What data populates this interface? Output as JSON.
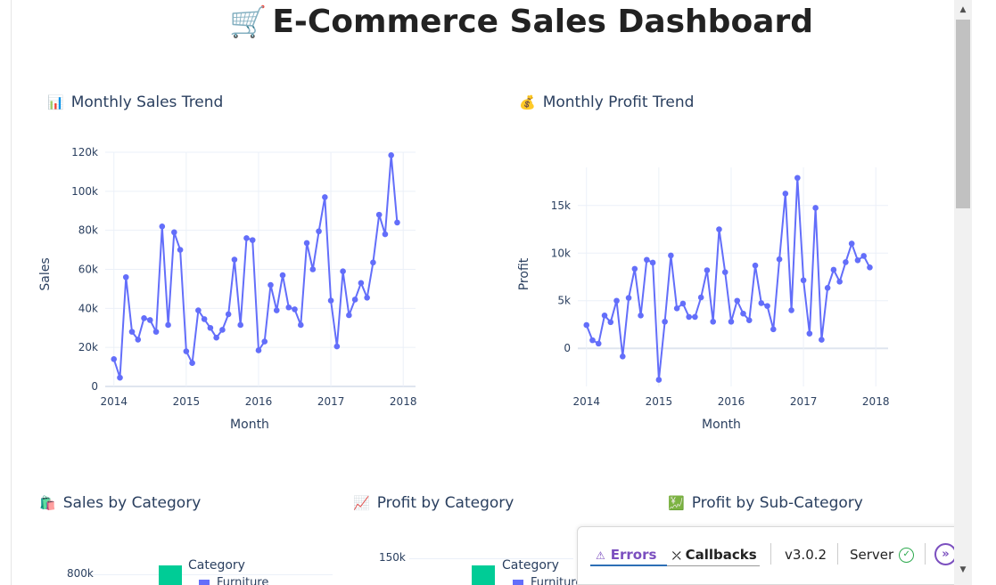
{
  "page": {
    "title": "E-Commerce Sales Dashboard",
    "title_icon": "🛒"
  },
  "sections": {
    "sales_trend": {
      "icon": "📊",
      "title": "Monthly Sales Trend"
    },
    "profit_trend": {
      "icon": "💰",
      "title": "Monthly Profit Trend"
    },
    "sales_by_category": {
      "icon": "🛍️",
      "title": "Sales by Category"
    },
    "profit_by_category": {
      "icon": "📈",
      "title": "Profit by Category"
    },
    "profit_by_subcategory": {
      "icon": "💹",
      "title": "Profit by Sub-Category"
    }
  },
  "bottom_charts": {
    "sales_by_category": {
      "tick": "800k",
      "legend_title": "Category",
      "legend_entry": "Furniture"
    },
    "profit_by_category": {
      "tick": "150k",
      "legend_title": "Category",
      "legend_entry": "Furniture"
    }
  },
  "devtools": {
    "errors_label": "Errors",
    "errors_icon": "⚠",
    "callbacks_label": "Callbacks",
    "callbacks_icon": "⤫",
    "version": "v3.0.2",
    "server_label": "Server",
    "server_icon": "check-circle-icon",
    "expand_icon": "double-chevron-right-icon"
  },
  "colors": {
    "series": "#636efa",
    "legend_swatch": "#00cc96",
    "devtools_accent": "#7b4fbf",
    "server_ok": "#2eaa4f"
  },
  "chart_data": [
    {
      "type": "line",
      "title": "",
      "xlabel": "Month",
      "ylabel": "Sales",
      "xlim": [
        2013.88,
        2018.17
      ],
      "ylim": [
        0,
        120000
      ],
      "xticks": [
        2014,
        2015,
        2016,
        2017,
        2018
      ],
      "xtick_labels": [
        "2014",
        "2015",
        "2016",
        "2017",
        "2018"
      ],
      "yticks": [
        0,
        20000,
        40000,
        60000,
        80000,
        100000,
        120000
      ],
      "ytick_labels": [
        "0",
        "20k",
        "40k",
        "60k",
        "80k",
        "100k",
        "120k"
      ],
      "grid": true,
      "x": [
        "2014-01",
        "2014-02",
        "2014-03",
        "2014-04",
        "2014-05",
        "2014-06",
        "2014-07",
        "2014-08",
        "2014-09",
        "2014-10",
        "2014-11",
        "2014-12",
        "2015-01",
        "2015-02",
        "2015-03",
        "2015-04",
        "2015-05",
        "2015-06",
        "2015-07",
        "2015-08",
        "2015-09",
        "2015-10",
        "2015-11",
        "2015-12",
        "2016-01",
        "2016-02",
        "2016-03",
        "2016-04",
        "2016-05",
        "2016-06",
        "2016-07",
        "2016-08",
        "2016-09",
        "2016-10",
        "2016-11",
        "2016-12",
        "2017-01",
        "2017-02",
        "2017-03",
        "2017-04",
        "2017-05",
        "2017-06",
        "2017-07",
        "2017-08",
        "2017-09",
        "2017-10",
        "2017-11",
        "2017-12"
      ],
      "values": [
        14000,
        4500,
        56000,
        28000,
        24000,
        35000,
        34000,
        28000,
        82000,
        31500,
        79000,
        70000,
        18000,
        12000,
        39000,
        34500,
        30000,
        25000,
        29000,
        37000,
        65000,
        31500,
        76000,
        75000,
        18500,
        23000,
        52000,
        39000,
        57000,
        40500,
        39500,
        31500,
        73500,
        60000,
        79500,
        97000,
        44000,
        20500,
        59000,
        36500,
        44500,
        53000,
        45500,
        63500,
        88000,
        78000,
        118500,
        84000
      ]
    },
    {
      "type": "line",
      "title": "",
      "xlabel": "Month",
      "ylabel": "Profit",
      "xlim": [
        2013.88,
        2018.17
      ],
      "ylim": [
        -4000,
        19000
      ],
      "xticks": [
        2014,
        2015,
        2016,
        2017,
        2018
      ],
      "xtick_labels": [
        "2014",
        "2015",
        "2016",
        "2017",
        "2018"
      ],
      "yticks": [
        0,
        5000,
        10000,
        15000
      ],
      "ytick_labels": [
        "0",
        "5k",
        "10k",
        "15k"
      ],
      "grid": true,
      "x": [
        "2014-01",
        "2014-02",
        "2014-03",
        "2014-04",
        "2014-05",
        "2014-06",
        "2014-07",
        "2014-08",
        "2014-09",
        "2014-10",
        "2014-11",
        "2014-12",
        "2015-01",
        "2015-02",
        "2015-03",
        "2015-04",
        "2015-05",
        "2015-06",
        "2015-07",
        "2015-08",
        "2015-09",
        "2015-10",
        "2015-11",
        "2015-12",
        "2016-01",
        "2016-02",
        "2016-03",
        "2016-04",
        "2016-05",
        "2016-06",
        "2016-07",
        "2016-08",
        "2016-09",
        "2016-10",
        "2016-11",
        "2016-12",
        "2017-01",
        "2017-02",
        "2017-03",
        "2017-04",
        "2017-05",
        "2017-06",
        "2017-07",
        "2017-08",
        "2017-09",
        "2017-10",
        "2017-11",
        "2017-12"
      ],
      "values": [
        2450,
        850,
        500,
        3450,
        2750,
        5000,
        -850,
        5300,
        8350,
        3450,
        9300,
        9000,
        -3300,
        2800,
        9750,
        4200,
        4700,
        3300,
        3300,
        5350,
        8200,
        2800,
        12500,
        8000,
        2800,
        5000,
        3650,
        2950,
        8700,
        4750,
        4450,
        2000,
        9350,
        16250,
        4000,
        17900,
        7150,
        1550,
        14750,
        900,
        6350,
        8250,
        7000,
        9050,
        11000,
        9250,
        9700,
        8500
      ]
    }
  ]
}
